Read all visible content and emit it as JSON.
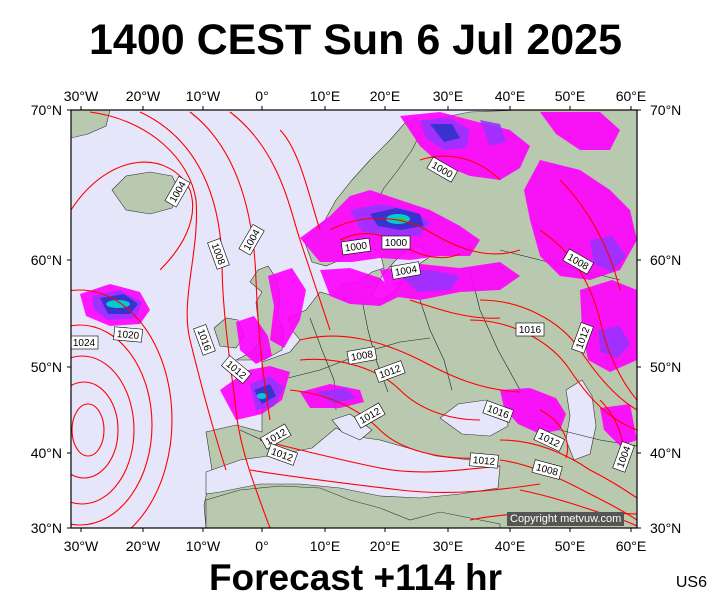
{
  "title": "1400 CEST Sun 6 Jul 2025",
  "footer": "Forecast +114 hr",
  "code": "US6",
  "copyright": "Copyright metvuw.com",
  "lon_labels": [
    "30°W",
    "20°W",
    "10°W",
    "0°",
    "10°E",
    "20°E",
    "30°E",
    "40°E",
    "50°E",
    "60°E"
  ],
  "lat_labels": [
    "70°N",
    "60°N",
    "50°N",
    "40°N",
    "30°N"
  ],
  "isobar_labels": [
    "1004",
    "1004",
    "1008",
    "1000",
    "1000",
    "1000",
    "1004",
    "1008",
    "1020",
    "1024",
    "1016",
    "1012",
    "1016",
    "1008",
    "1012",
    "1012",
    "1012",
    "1012",
    "1012",
    "1016",
    "1012",
    "1012",
    "1008",
    "1004"
  ],
  "colors": {
    "sea": "#e6e6fa",
    "land": "#b9c9b0",
    "isobar": "#ff0000",
    "rain_light": "#ff00ff",
    "rain_medium": "#9933ff",
    "rain_heavy": "#3333cc",
    "rain_extreme": "#00cccc",
    "border": "#000000"
  }
}
